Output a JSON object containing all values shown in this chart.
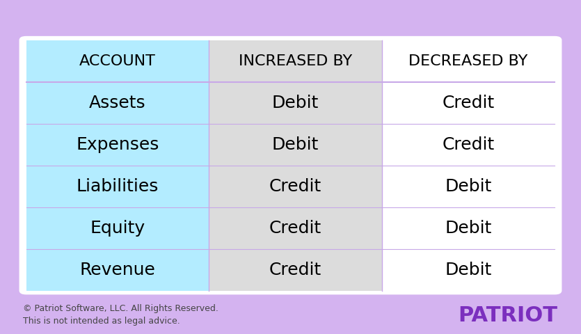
{
  "headers": [
    "ACCOUNT",
    "INCREASED BY",
    "DECREASED BY"
  ],
  "rows": [
    [
      "Assets",
      "Debit",
      "Credit"
    ],
    [
      "Expenses",
      "Debit",
      "Credit"
    ],
    [
      "Liabilities",
      "Credit",
      "Debit"
    ],
    [
      "Equity",
      "Credit",
      "Debit"
    ],
    [
      "Revenue",
      "Credit",
      "Debit"
    ]
  ],
  "bg_color": "#d4b3f0",
  "col0_bg": "#b3ecff",
  "col1_bg": "#dcdcdc",
  "col2_bg": "#ffffff",
  "divider_color": "#c8a8e8",
  "text_color": "#000000",
  "header_fontsize": 16,
  "cell_fontsize": 18,
  "footer_text1": "© Patriot Software, LLC. All Rights Reserved.",
  "footer_text2": "This is not intended as legal advice.",
  "patriot_text": "PATRIOT",
  "patriot_color": "#7b2fbe",
  "footer_fontsize": 9,
  "patriot_fontsize": 22
}
